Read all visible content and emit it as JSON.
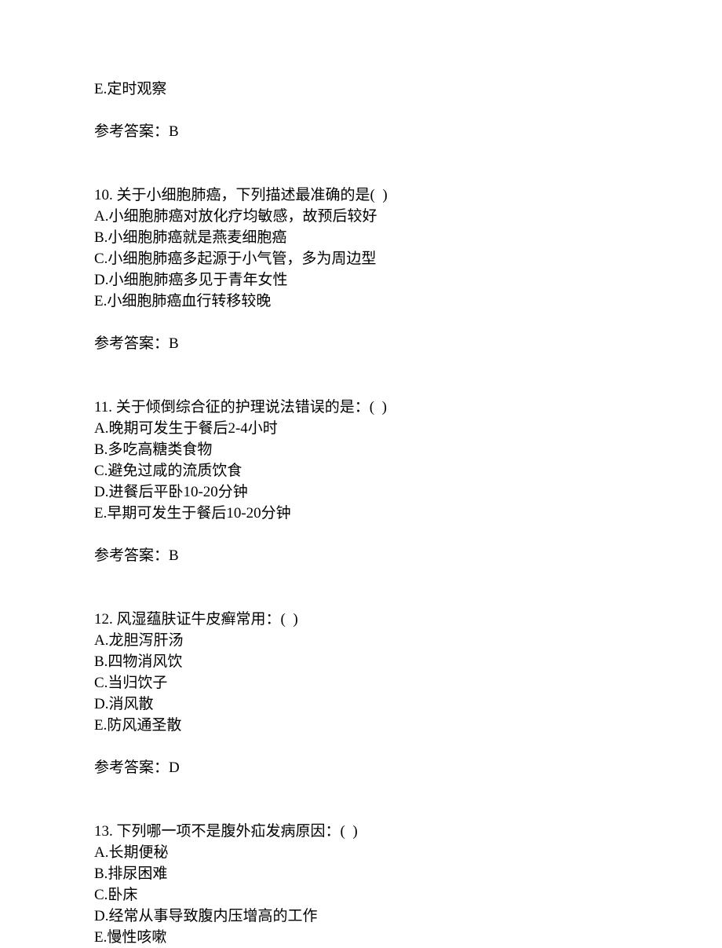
{
  "q9": {
    "option_e": "E.定时观察",
    "answer_label": "参考答案：B"
  },
  "q10": {
    "stem": "10. 关于小细胞肺癌，下列描述最准确的是(  )",
    "option_a": "A.小细胞肺癌对放化疗均敏感，故预后较好",
    "option_b": "B.小细胞肺癌就是燕麦细胞癌",
    "option_c": "C.小细胞肺癌多起源于小气管，多为周边型",
    "option_d": "D.小细胞肺癌多见于青年女性",
    "option_e": "E.小细胞肺癌血行转移较晚",
    "answer_label": "参考答案：B"
  },
  "q11": {
    "stem": "11. 关于倾倒综合征的护理说法错误的是：(  )",
    "option_a": "A.晚期可发生于餐后2-4小时",
    "option_b": "B.多吃高糖类食物",
    "option_c": "C.避免过咸的流质饮食",
    "option_d": "D.进餐后平卧10-20分钟",
    "option_e": "E.早期可发生于餐后10-20分钟",
    "answer_label": "参考答案：B"
  },
  "q12": {
    "stem": "12. 风湿蕴肤证牛皮癣常用：(  )",
    "option_a": "A.龙胆泻肝汤",
    "option_b": "B.四物消风饮",
    "option_c": "C.当归饮子",
    "option_d": "D.消风散",
    "option_e": "E.防风通圣散",
    "answer_label": "参考答案：D"
  },
  "q13": {
    "stem": "13. 下列哪一项不是腹外疝发病原因：(  )",
    "option_a": "A.长期便秘",
    "option_b": "B.排尿困难",
    "option_c": "C.卧床",
    "option_d": "D.经常从事导致腹内压增高的工作",
    "option_e": "E.慢性咳嗽"
  }
}
